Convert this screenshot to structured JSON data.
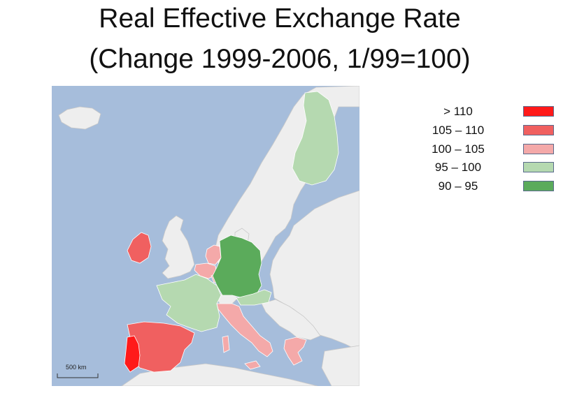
{
  "title": {
    "line1": "Real Effective Exchange Rate",
    "line2": "(Change 1999-2006, 1/99=100)"
  },
  "map": {
    "scale_label": "500 km",
    "colors": {
      "sea": "#a6bddb",
      "land_other": "#eeeeee",
      "border": "#c8c8c8"
    }
  },
  "legend": [
    {
      "label": "> 110",
      "color": "#ff1a1a"
    },
    {
      "label": "105 – 110",
      "color": "#f06060"
    },
    {
      "label": "100 – 105",
      "color": "#f4a9a9"
    },
    {
      "label": "95 – 100",
      "color": "#b5d9b0"
    },
    {
      "label": "90 –  95",
      "color": "#5bab5b"
    }
  ],
  "countries": [
    {
      "name": "Portugal",
      "value_class": "> 110"
    },
    {
      "name": "Spain",
      "value_class": "105 – 110"
    },
    {
      "name": "Ireland",
      "value_class": "105 – 110"
    },
    {
      "name": "Italy",
      "value_class": "100 – 105"
    },
    {
      "name": "Greece",
      "value_class": "100 – 105"
    },
    {
      "name": "Netherlands",
      "value_class": "100 – 105"
    },
    {
      "name": "Belgium",
      "value_class": "100 – 105"
    },
    {
      "name": "Luxembourg",
      "value_class": "100 – 105"
    },
    {
      "name": "France",
      "value_class": "95 – 100"
    },
    {
      "name": "Austria",
      "value_class": "95 – 100"
    },
    {
      "name": "Finland",
      "value_class": "95 – 100"
    },
    {
      "name": "Germany",
      "value_class": "90 –  95"
    }
  ]
}
